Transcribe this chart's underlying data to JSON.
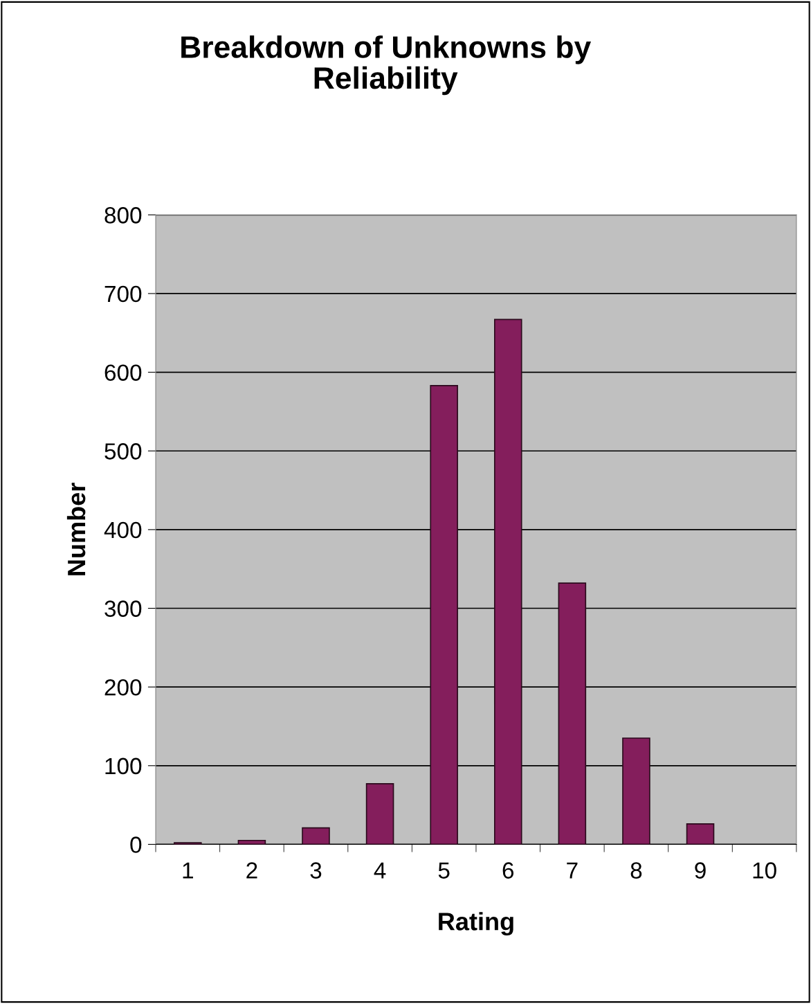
{
  "chart_data": {
    "type": "bar",
    "title": "Breakdown of Unknowns by\nReliability",
    "xlabel": "Rating",
    "ylabel": "Number",
    "categories": [
      "1",
      "2",
      "3",
      "4",
      "5",
      "6",
      "7",
      "8",
      "9",
      "10"
    ],
    "values": [
      2,
      5,
      21,
      77,
      583,
      667,
      332,
      135,
      26,
      0
    ],
    "color": "#841e5c",
    "ylim": [
      0,
      800
    ],
    "yticks": [
      0,
      100,
      200,
      300,
      400,
      500,
      600,
      700,
      800
    ],
    "grid": "y",
    "legend": false
  }
}
